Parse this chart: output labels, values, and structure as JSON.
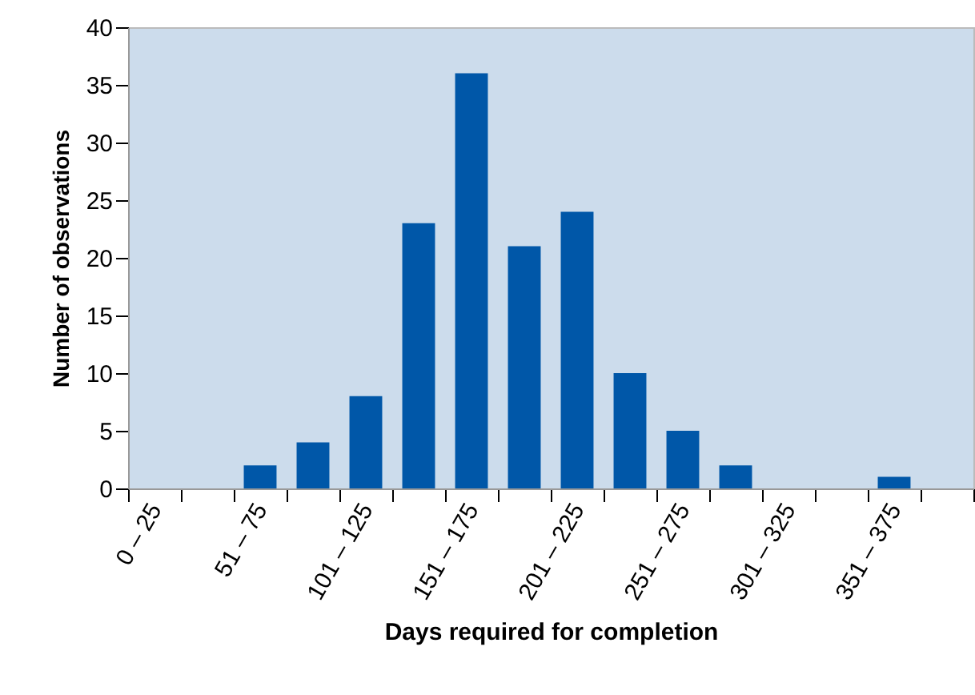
{
  "chart_data": {
    "type": "bar",
    "xlabel": "Days required for completion",
    "ylabel": "Number of observations",
    "categories": [
      "0 – 25",
      null,
      "51 – 75",
      null,
      "101 – 125",
      null,
      "151 – 175",
      null,
      "201 – 225",
      null,
      "251 – 275",
      null,
      "301 – 325",
      null,
      "351 – 375",
      null
    ],
    "values": [
      0,
      0,
      2,
      4,
      8,
      23,
      36,
      21,
      24,
      10,
      5,
      2,
      0,
      0,
      1,
      0
    ],
    "color": "#0057a8",
    "ylim": [
      0,
      40
    ],
    "yticks": [
      0,
      5,
      10,
      15,
      20,
      25,
      30,
      35,
      40
    ],
    "grid": false
  }
}
